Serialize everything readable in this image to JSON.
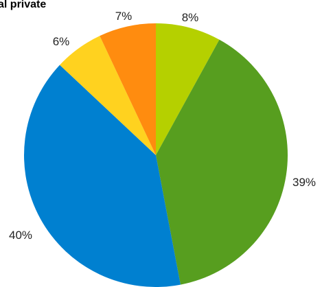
{
  "chart_data": {
    "type": "pie",
    "title": "al private",
    "slices": [
      {
        "value": 8,
        "label": "8%",
        "color": "#b5d000"
      },
      {
        "value": 39,
        "label": "39%",
        "color": "#579e1f"
      },
      {
        "value": 40,
        "label": "40%",
        "color": "#0080d0"
      },
      {
        "value": 6,
        "label": "6%",
        "color": "#ffd21f"
      },
      {
        "value": 7,
        "label": "7%",
        "color": "#ff8c0f"
      }
    ]
  }
}
